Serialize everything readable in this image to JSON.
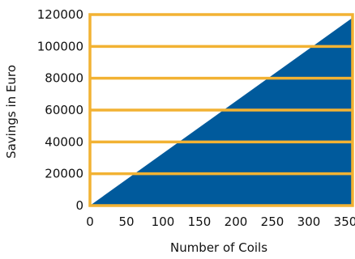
{
  "chart_data": {
    "type": "area",
    "title": "",
    "xlabel": "Number of Coils",
    "ylabel": "Savings in Euro",
    "x": [
      0,
      360
    ],
    "series": [
      {
        "values": [
          0,
          118000
        ]
      }
    ],
    "xlim": [
      0,
      360
    ],
    "ylim": [
      0,
      120000
    ],
    "xticks": [
      0,
      50,
      100,
      150,
      200,
      250,
      300,
      350
    ],
    "yticks": [
      0,
      20000,
      40000,
      60000,
      80000,
      100000,
      120000
    ],
    "xtick_labels": [
      "0",
      "50",
      "100",
      "150",
      "200",
      "250",
      "300",
      "350"
    ],
    "ytick_labels": [
      "0",
      "20000",
      "40000",
      "60000",
      "80000",
      "100000",
      "120000"
    ],
    "grid": true,
    "legend": "none",
    "colors": {
      "area": "#005A9C",
      "grid": "#F2B233",
      "frame": "#F2B233",
      "text": "#111111"
    }
  }
}
